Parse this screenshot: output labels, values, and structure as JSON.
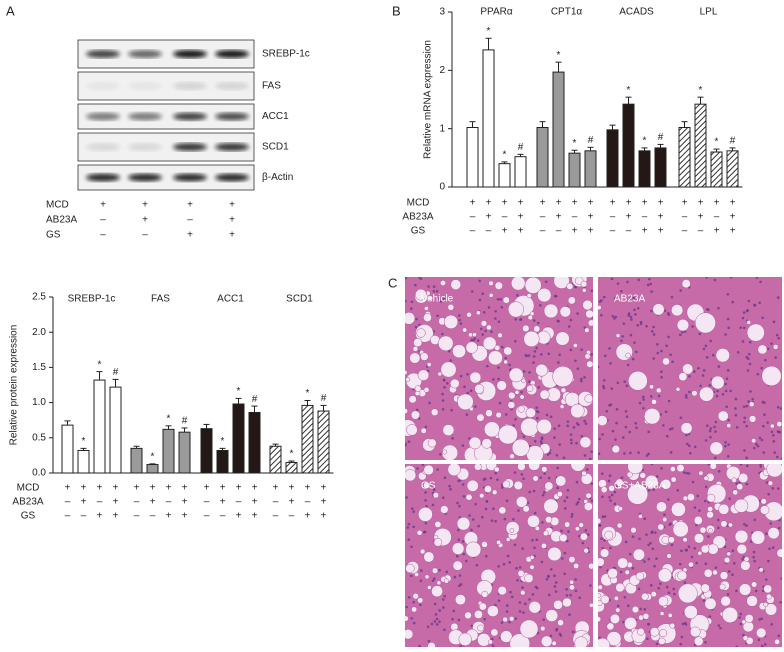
{
  "panel_labels": [
    "A",
    "B",
    "C"
  ],
  "blot": {
    "bands": [
      "SREBP-1c",
      "FAS",
      "ACC1",
      "SCD1",
      "β-Actin"
    ],
    "treatments": [
      {
        "name": "MCD",
        "signs": [
          "+",
          "+",
          "+",
          "+"
        ]
      },
      {
        "name": "AB23A",
        "signs": [
          "–",
          "+",
          "–",
          "+"
        ]
      },
      {
        "name": "GS",
        "signs": [
          "–",
          "–",
          "+",
          "+"
        ]
      }
    ]
  },
  "histology": [
    "Vehicle",
    "AB23A",
    "GS",
    "GS+AB23A"
  ],
  "chart_data": [
    {
      "type": "bar",
      "ylabel": "Relative protein expression",
      "ylim": [
        0,
        2.5
      ],
      "yticks": [
        {
          "value": 0,
          "label": "0.0"
        },
        {
          "value": 0.5,
          "label": "0.5"
        },
        {
          "value": 1,
          "label": "1.0"
        },
        {
          "value": 1.5,
          "label": "1.5"
        },
        {
          "value": 2,
          "label": "2.0"
        },
        {
          "value": 2.5,
          "label": "2.5"
        }
      ],
      "groups": [
        {
          "name": "SREBP-1c",
          "fill": "#ffffff",
          "values": [
            0.68,
            0.32,
            1.32,
            1.22
          ],
          "errors": [
            0.06,
            0.03,
            0.12,
            0.11
          ],
          "annotations": [
            null,
            "*",
            "*",
            "#"
          ]
        },
        {
          "name": "FAS",
          "fill": "#9a9a9a",
          "values": [
            0.35,
            0.12,
            0.62,
            0.58
          ],
          "errors": [
            0.03,
            0.01,
            0.05,
            0.06
          ],
          "annotations": [
            null,
            "*",
            "*",
            "#"
          ]
        },
        {
          "name": "ACC1",
          "fill": "#231815",
          "values": [
            0.63,
            0.32,
            0.98,
            0.86
          ],
          "errors": [
            0.06,
            0.03,
            0.08,
            0.09
          ],
          "annotations": [
            null,
            "*",
            "*",
            "#"
          ]
        },
        {
          "name": "SCD1",
          "fill": "hatch",
          "values": [
            0.38,
            0.15,
            0.96,
            0.88
          ],
          "errors": [
            0.03,
            0.02,
            0.07,
            0.08
          ],
          "annotations": [
            null,
            "*",
            "*",
            "#"
          ]
        }
      ],
      "treatments": [
        {
          "name": "MCD",
          "signs": [
            "+",
            "+",
            "+",
            "+"
          ]
        },
        {
          "name": "AB23A",
          "signs": [
            "–",
            "+",
            "–",
            "+"
          ]
        },
        {
          "name": "GS",
          "signs": [
            "–",
            "–",
            "+",
            "+"
          ]
        }
      ]
    },
    {
      "type": "bar",
      "ylabel": "Relative mRNA expression",
      "ylim": [
        0,
        3
      ],
      "yticks": [
        0,
        1,
        2,
        3
      ],
      "groups": [
        {
          "name": "PPARα",
          "fill": "#ffffff",
          "values": [
            1.02,
            2.35,
            0.4,
            0.52
          ],
          "errors": [
            0.1,
            0.2,
            0.03,
            0.04
          ],
          "annotations": [
            null,
            "*",
            "*",
            "#"
          ]
        },
        {
          "name": "CPT1α",
          "fill": "#9a9a9a",
          "values": [
            1.02,
            1.97,
            0.58,
            0.62
          ],
          "errors": [
            0.1,
            0.17,
            0.05,
            0.06
          ],
          "annotations": [
            null,
            "*",
            "*",
            "#"
          ]
        },
        {
          "name": "ACADS",
          "fill": "#231815",
          "values": [
            0.98,
            1.42,
            0.62,
            0.67
          ],
          "errors": [
            0.08,
            0.12,
            0.05,
            0.06
          ],
          "annotations": [
            null,
            "*",
            "*",
            "#"
          ]
        },
        {
          "name": "LPL",
          "fill": "hatch",
          "values": [
            1.02,
            1.42,
            0.6,
            0.62
          ],
          "errors": [
            0.1,
            0.12,
            0.05,
            0.05
          ],
          "annotations": [
            null,
            "*",
            "*",
            "#"
          ]
        }
      ],
      "treatments": [
        {
          "name": "MCD",
          "signs": [
            "+",
            "+",
            "+",
            "+"
          ]
        },
        {
          "name": "AB23A",
          "signs": [
            "–",
            "+",
            "–",
            "+"
          ]
        },
        {
          "name": "GS",
          "signs": [
            "–",
            "–",
            "+",
            "+"
          ]
        }
      ]
    }
  ]
}
